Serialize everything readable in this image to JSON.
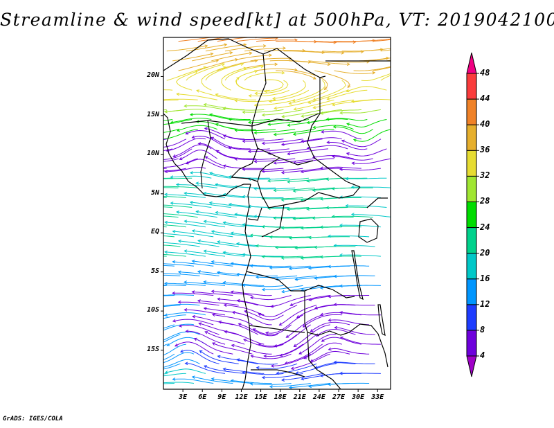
{
  "title": "Streamline & wind speed[kt] at 500hPa, VT: 2019042100",
  "footer_credit": "GrADS: IGES/COLA",
  "map": {
    "projection": "lat-lon",
    "lon_range": [
      0,
      35
    ],
    "lat_range": [
      -20,
      25
    ],
    "field": "streamlines of 500hPa wind coloured by speed",
    "y_ticks": [
      {
        "lat": 20,
        "label": "20N"
      },
      {
        "lat": 15,
        "label": "15N"
      },
      {
        "lat": 10,
        "label": "10N"
      },
      {
        "lat": 5,
        "label": "5N"
      },
      {
        "lat": 0,
        "label": "EQ"
      },
      {
        "lat": -5,
        "label": "5S"
      },
      {
        "lat": -10,
        "label": "10S"
      },
      {
        "lat": -15,
        "label": "15S"
      }
    ],
    "x_ticks": [
      {
        "lon": 3,
        "label": "3E"
      },
      {
        "lon": 6,
        "label": "6E"
      },
      {
        "lon": 9,
        "label": "9E"
      },
      {
        "lon": 12,
        "label": "12E"
      },
      {
        "lon": 15,
        "label": "15E"
      },
      {
        "lon": 18,
        "label": "18E"
      },
      {
        "lon": 21,
        "label": "21E"
      },
      {
        "lon": 24,
        "label": "24E"
      },
      {
        "lon": 27,
        "label": "27E"
      },
      {
        "lon": 30,
        "label": "30E"
      },
      {
        "lon": 33,
        "label": "33E"
      }
    ]
  },
  "colorbar": {
    "unit": "kt",
    "labels": [
      "4",
      "8",
      "12",
      "16",
      "20",
      "24",
      "28",
      "32",
      "36",
      "40",
      "44",
      "48"
    ],
    "colors": [
      "#a000c8",
      "#6e00dc",
      "#1e3cff",
      "#0096ff",
      "#00c8c8",
      "#00d28c",
      "#00dc00",
      "#a0e632",
      "#e6dc32",
      "#e6af2d",
      "#f08228",
      "#fa3c3c",
      "#f00082"
    ]
  }
}
